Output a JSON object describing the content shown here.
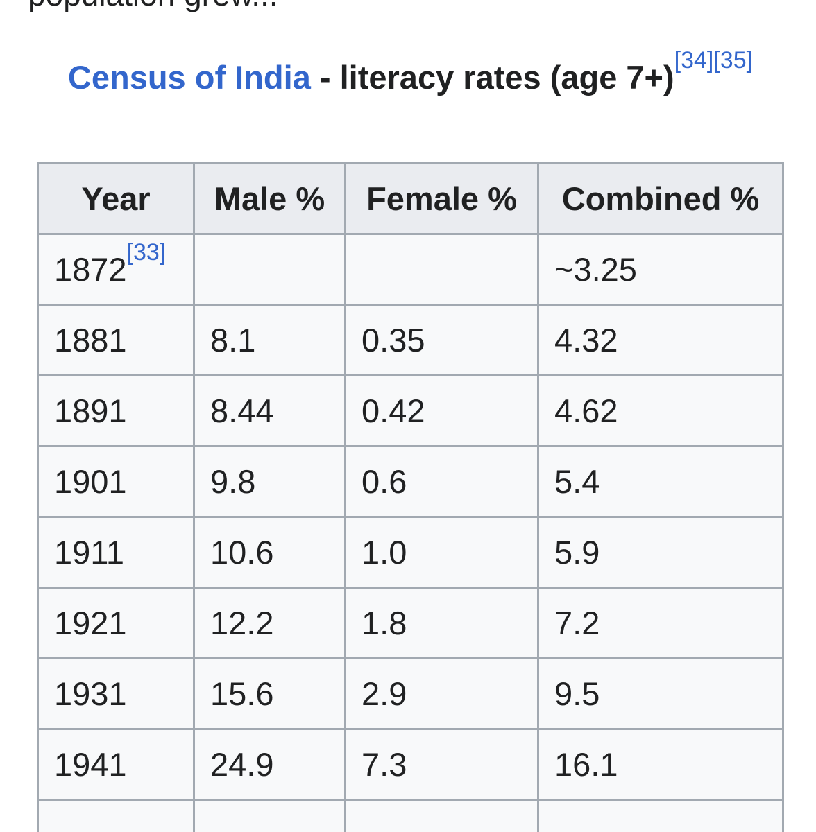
{
  "partial_text_above": "population grew...",
  "caption": {
    "link_text": "Census of India",
    "rest_text": " - literacy rates (age 7+)",
    "refs": [
      "[34]",
      "[35]"
    ]
  },
  "table": {
    "headers": [
      "Year",
      "Male %",
      "Female %",
      "Combined %"
    ],
    "rows": [
      {
        "year": "1872",
        "ref": "[33]",
        "male": "",
        "female": "",
        "combined": "~3.25"
      },
      {
        "year": "1881",
        "ref": "",
        "male": "8.1",
        "female": "0.35",
        "combined": "4.32"
      },
      {
        "year": "1891",
        "ref": "",
        "male": "8.44",
        "female": "0.42",
        "combined": "4.62"
      },
      {
        "year": "1901",
        "ref": "",
        "male": "9.8",
        "female": "0.6",
        "combined": "5.4"
      },
      {
        "year": "1911",
        "ref": "",
        "male": "10.6",
        "female": "1.0",
        "combined": "5.9"
      },
      {
        "year": "1921",
        "ref": "",
        "male": "12.2",
        "female": "1.8",
        "combined": "7.2"
      },
      {
        "year": "1931",
        "ref": "",
        "male": "15.6",
        "female": "2.9",
        "combined": "9.5"
      },
      {
        "year": "1941",
        "ref": "",
        "male": "24.9",
        "female": "7.3",
        "combined": "16.1"
      },
      {
        "year": "",
        "ref": "",
        "male": "",
        "female": "",
        "combined": ""
      }
    ]
  }
}
